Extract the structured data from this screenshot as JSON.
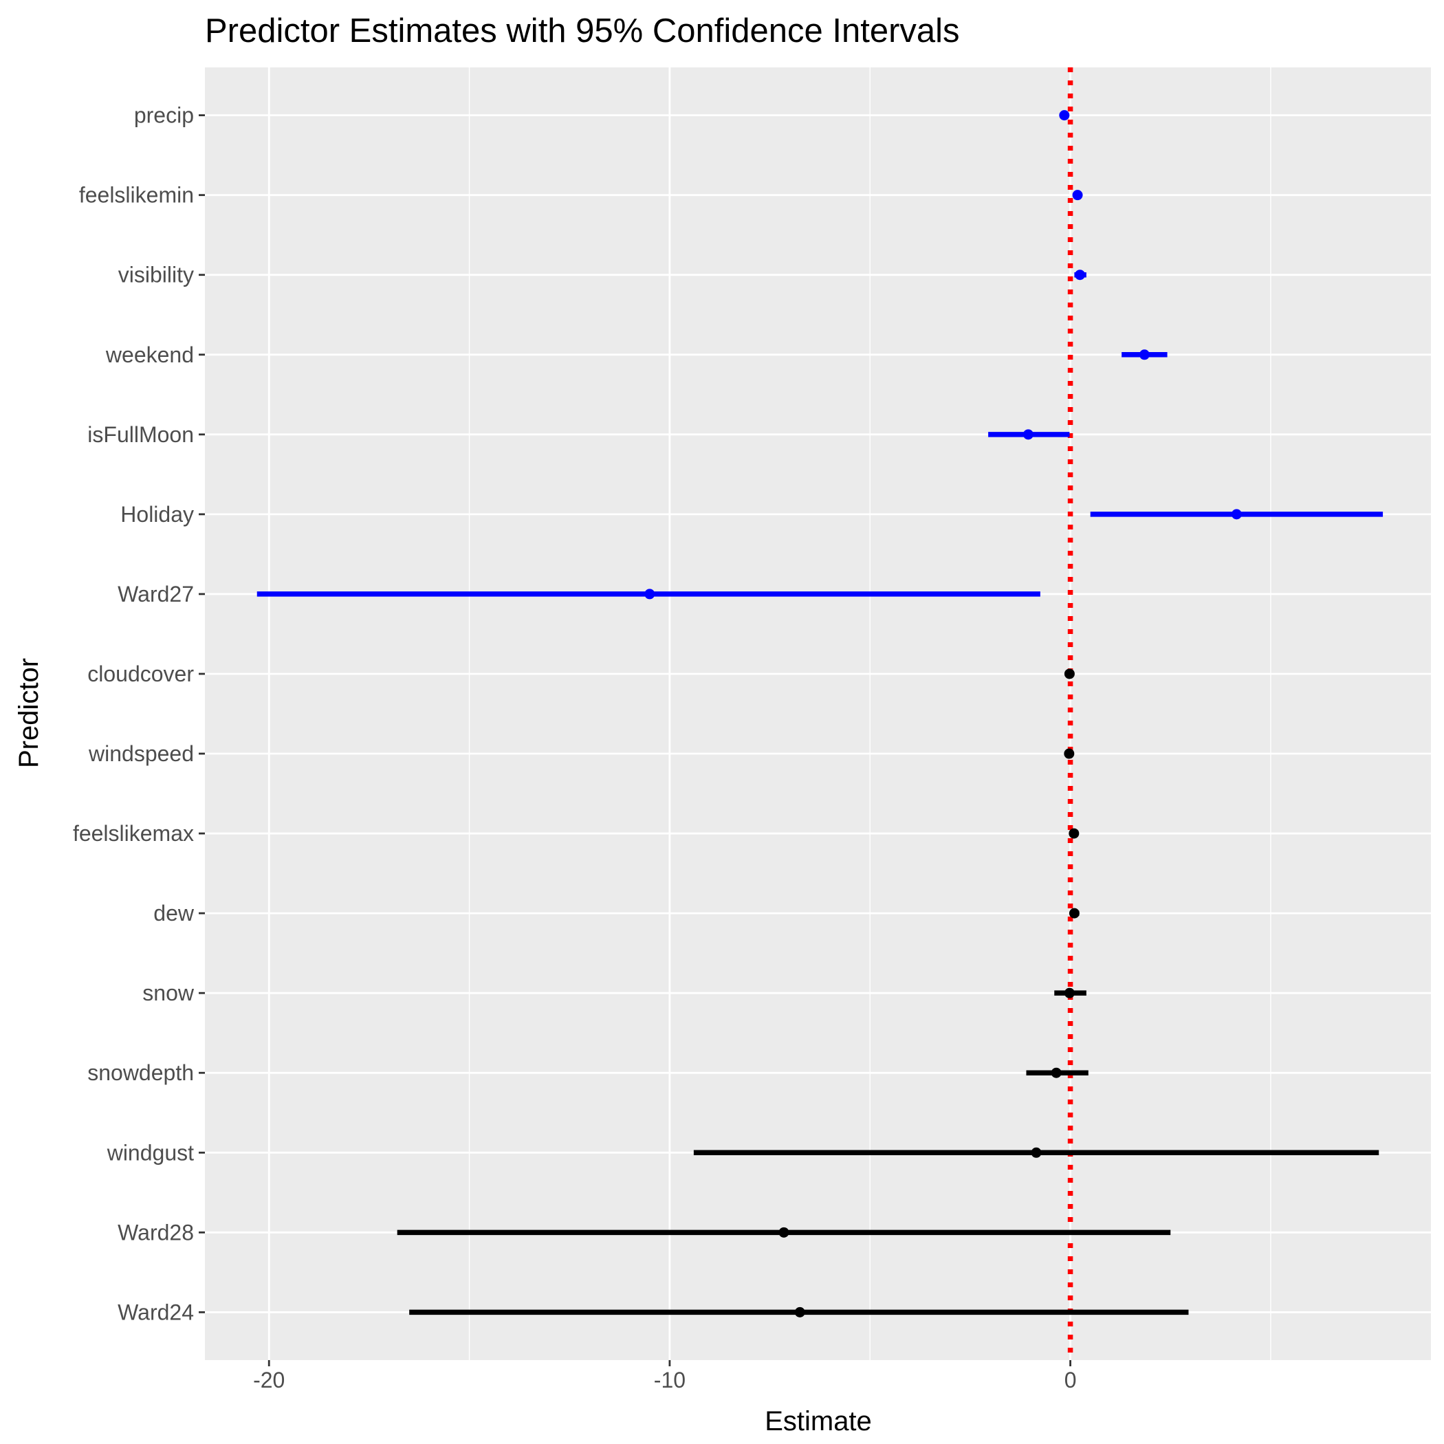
{
  "chart_data": {
    "type": "forest",
    "title": "Predictor Estimates with 95% Confidence Intervals",
    "xlabel": "Estimate",
    "ylabel": "Predictor",
    "xlim": [
      -21.6,
      9.0
    ],
    "x_ticks": [
      -20,
      -10,
      0
    ],
    "x_tick_labels": [
      "-20",
      "-10",
      "0"
    ],
    "reference_line": {
      "x": 0,
      "color": "#ff0000",
      "style": "dotted"
    },
    "grid": true,
    "legend": "none",
    "colors": {
      "significant": "#0000ff",
      "not_significant": "#000000",
      "panel": "#ebebeb",
      "grid": "#ffffff"
    },
    "predictors": [
      {
        "name": "precip",
        "estimate": -0.15,
        "lower": -0.15,
        "upper": -0.15,
        "group": "significant"
      },
      {
        "name": "feelslikemin",
        "estimate": 0.18,
        "lower": 0.15,
        "upper": 0.21,
        "group": "significant"
      },
      {
        "name": "visibility",
        "estimate": 0.24,
        "lower": 0.1,
        "upper": 0.4,
        "group": "significant"
      },
      {
        "name": "weekend",
        "estimate": 1.85,
        "lower": 1.28,
        "upper": 2.42,
        "group": "significant"
      },
      {
        "name": "isFullMoon",
        "estimate": -1.05,
        "lower": -2.05,
        "upper": -0.02,
        "group": "significant"
      },
      {
        "name": "Holiday",
        "estimate": 4.15,
        "lower": 0.5,
        "upper": 7.8,
        "group": "significant"
      },
      {
        "name": "Ward27",
        "estimate": -10.5,
        "lower": -20.3,
        "upper": -0.75,
        "group": "significant"
      },
      {
        "name": "cloudcover",
        "estimate": -0.02,
        "lower": -0.05,
        "upper": 0.02,
        "group": "not_significant"
      },
      {
        "name": "windspeed",
        "estimate": -0.03,
        "lower": -0.06,
        "upper": 0.0,
        "group": "not_significant"
      },
      {
        "name": "feelslikemax",
        "estimate": 0.09,
        "lower": 0.06,
        "upper": 0.12,
        "group": "not_significant"
      },
      {
        "name": "dew",
        "estimate": 0.1,
        "lower": 0.0,
        "upper": 0.22,
        "group": "not_significant"
      },
      {
        "name": "snow",
        "estimate": -0.02,
        "lower": -0.4,
        "upper": 0.4,
        "group": "not_significant"
      },
      {
        "name": "snowdepth",
        "estimate": -0.35,
        "lower": -1.1,
        "upper": 0.45,
        "group": "not_significant"
      },
      {
        "name": "windgust",
        "estimate": -0.85,
        "lower": -9.4,
        "upper": 7.7,
        "group": "not_significant"
      },
      {
        "name": "Ward28",
        "estimate": -7.15,
        "lower": -16.8,
        "upper": 2.5,
        "group": "not_significant"
      },
      {
        "name": "Ward24",
        "estimate": -6.75,
        "lower": -16.5,
        "upper": 2.95,
        "group": "not_significant"
      }
    ]
  }
}
